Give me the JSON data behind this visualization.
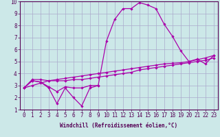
{
  "x": [
    0,
    1,
    2,
    3,
    4,
    5,
    6,
    7,
    8,
    9,
    10,
    11,
    12,
    13,
    14,
    15,
    16,
    17,
    18,
    19,
    20,
    21,
    22,
    23
  ],
  "line1": [
    2.8,
    3.4,
    3.3,
    2.8,
    1.5,
    2.8,
    2.0,
    1.3,
    2.8,
    3.0,
    null,
    null,
    null,
    null,
    null,
    null,
    null,
    null,
    null,
    null,
    null,
    null,
    null,
    null
  ],
  "line2": [
    2.8,
    3.4,
    3.3,
    2.9,
    2.5,
    2.9,
    2.8,
    2.8,
    3.0,
    3.0,
    6.7,
    8.5,
    9.4,
    9.4,
    9.9,
    9.7,
    9.4,
    8.1,
    7.1,
    5.9,
    5.0,
    5.2,
    4.8,
    5.5
  ],
  "line3": [
    2.8,
    3.5,
    3.5,
    3.4,
    3.4,
    3.4,
    3.5,
    3.5,
    3.6,
    3.7,
    3.8,
    3.9,
    4.0,
    4.1,
    4.3,
    4.4,
    4.5,
    4.6,
    4.7,
    4.8,
    4.9,
    5.0,
    5.1,
    5.3
  ],
  "line4": [
    2.8,
    3.0,
    3.2,
    3.4,
    3.5,
    3.6,
    3.7,
    3.8,
    3.9,
    4.0,
    4.1,
    4.2,
    4.3,
    4.4,
    4.5,
    4.6,
    4.7,
    4.8,
    4.85,
    4.9,
    5.0,
    5.15,
    5.3,
    5.5
  ],
  "color": "#aa00aa",
  "bg_color": "#cce8e8",
  "grid_color": "#aaaacc",
  "ylim": [
    1,
    10
  ],
  "xlim": [
    0,
    23
  ],
  "yticks": [
    1,
    2,
    3,
    4,
    5,
    6,
    7,
    8,
    9,
    10
  ],
  "xticks": [
    0,
    1,
    2,
    3,
    4,
    5,
    6,
    7,
    8,
    9,
    10,
    11,
    12,
    13,
    14,
    15,
    16,
    17,
    18,
    19,
    20,
    21,
    22,
    23
  ],
  "xlabel": "Windchill (Refroidissement éolien,°C)",
  "tick_fontsize": 5.5,
  "label_fontsize": 5.5,
  "linewidth": 0.9,
  "markersize": 2.2
}
